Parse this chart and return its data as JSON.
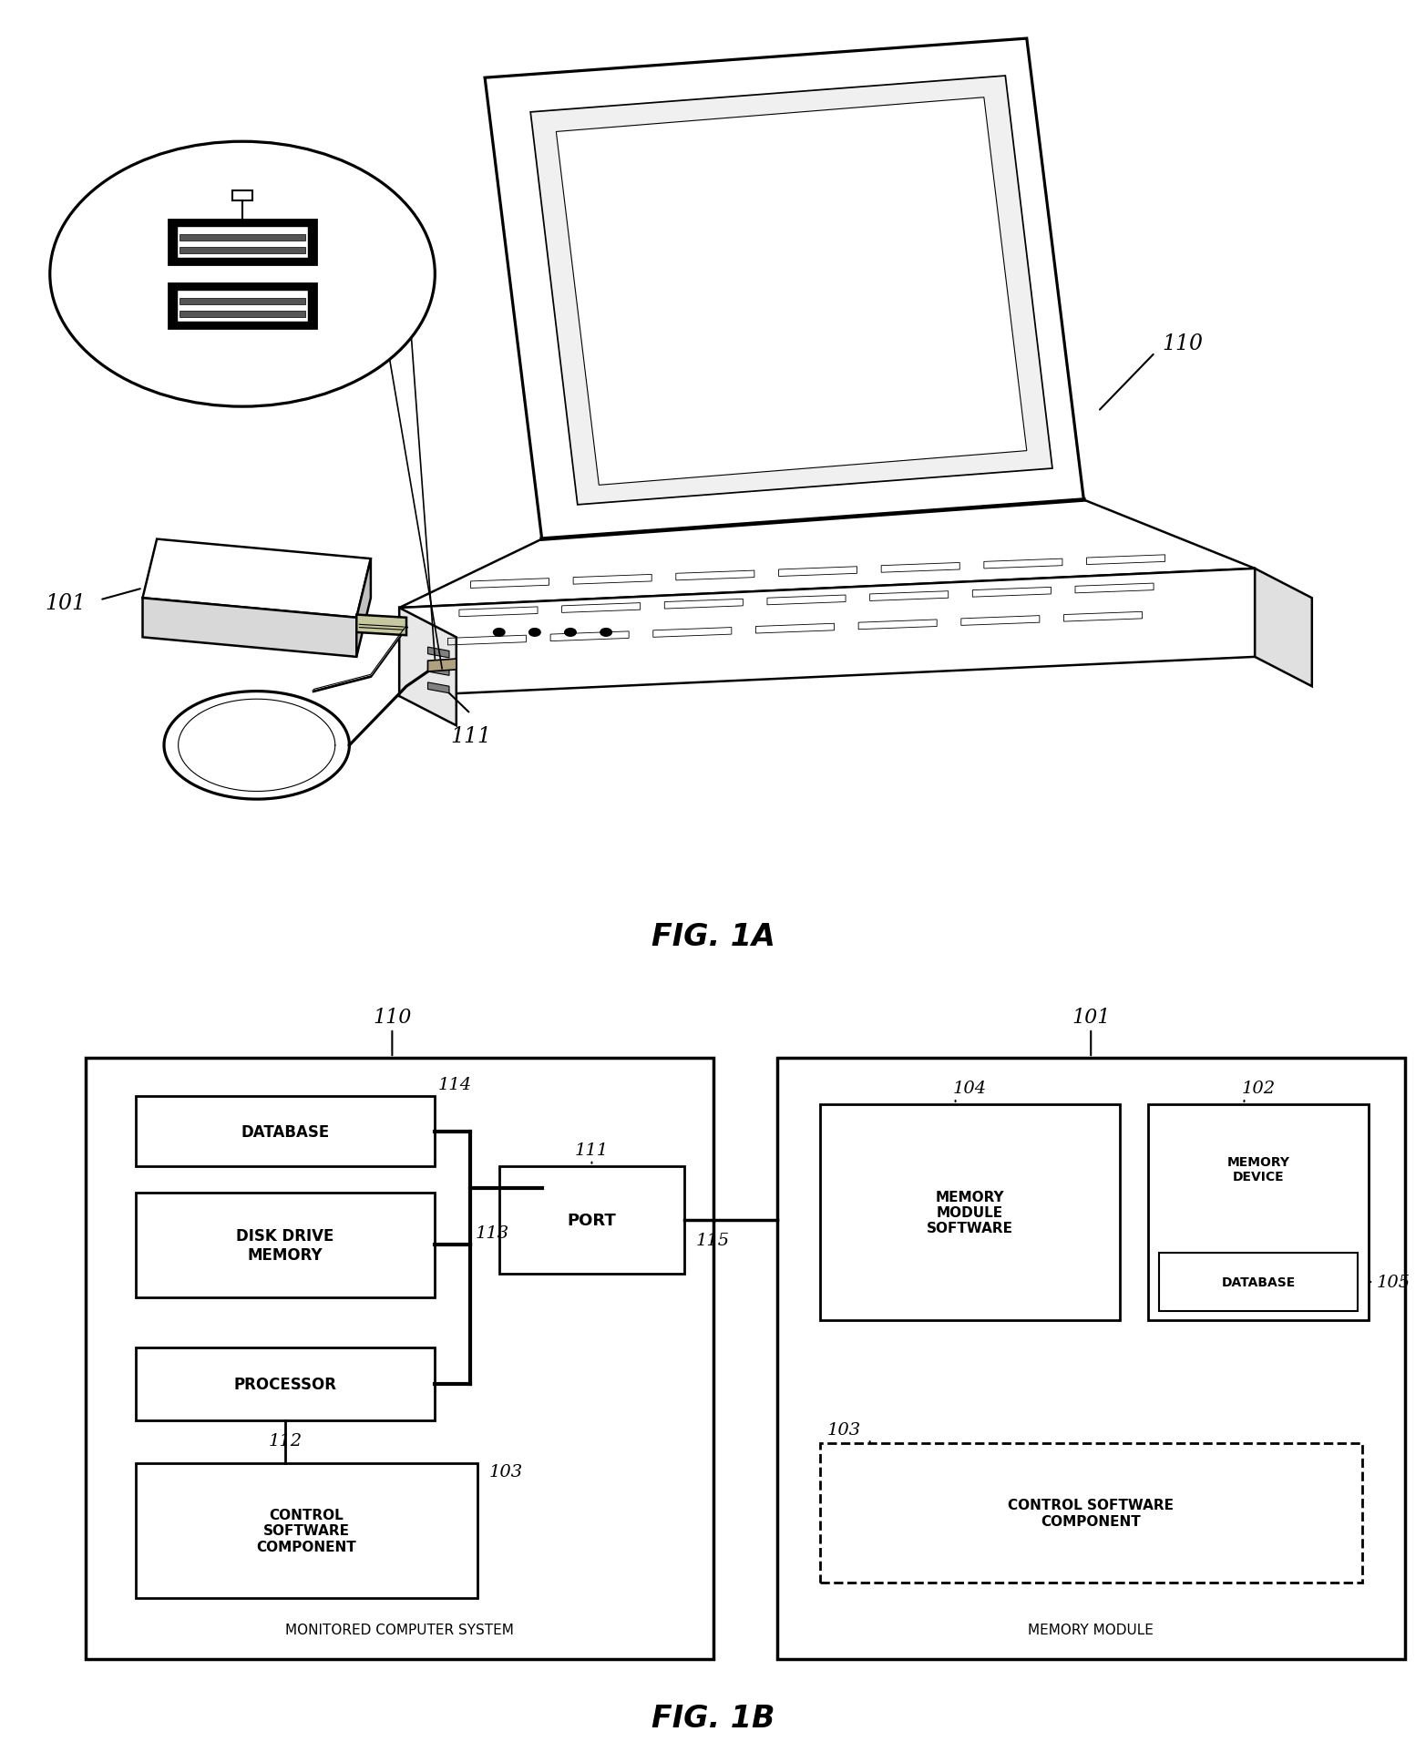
{
  "bg_color": "#ffffff",
  "fig1a_caption": "FIG. 1A",
  "fig1b_caption": "FIG. 1B",
  "fig1a_label_110": "110",
  "fig1a_label_101": "101",
  "fig1a_label_111": "111"
}
